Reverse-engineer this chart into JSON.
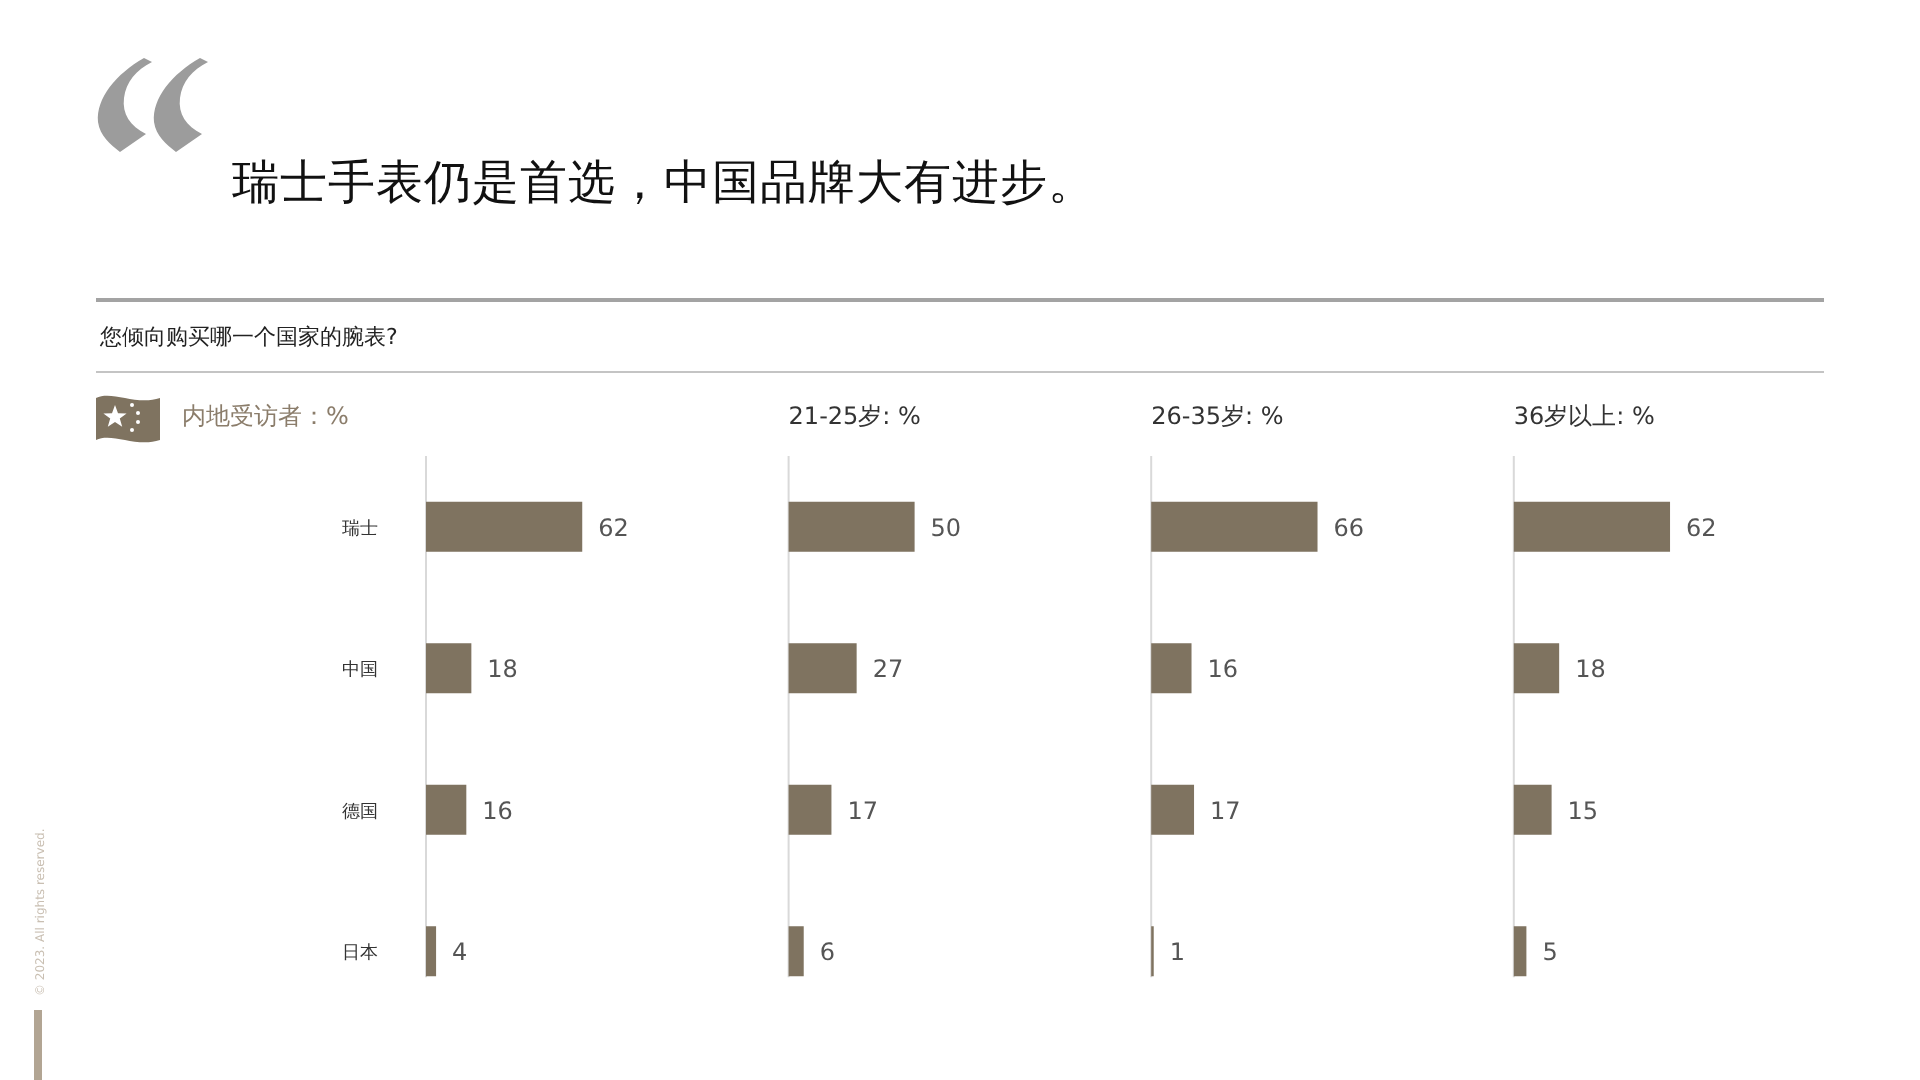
{
  "chart_data": [
    {
      "type": "other",
      "title": "瑞士手表仍是首选，中国品牌大有进步。",
      "subtitle": "您倾向购买哪一个国家的腕表?",
      "annotations": [
        "© 2023. All rights reserved."
      ]
    },
    {
      "type": "bar",
      "orientation": "horizontal",
      "title": "内地受访者：%",
      "categories": [
        "瑞士",
        "中国",
        "德国",
        "日本"
      ],
      "values": [
        62,
        18,
        16,
        4
      ],
      "color": "#7f7360",
      "data_labels": true,
      "tick_labels": "y"
    },
    {
      "type": "bar",
      "orientation": "horizontal",
      "title": "21-25岁: %",
      "categories": [
        null,
        null,
        null,
        null
      ],
      "values": [
        50,
        27,
        17,
        6
      ],
      "color": "#7f7360",
      "data_labels": true
    },
    {
      "type": "bar",
      "orientation": "horizontal",
      "title": "26-35岁: %",
      "categories": [
        null,
        null,
        null,
        null
      ],
      "values": [
        66,
        16,
        17,
        1
      ],
      "color": "#7f7360",
      "data_labels": true
    },
    {
      "type": "bar",
      "orientation": "horizontal",
      "title": "36岁以上: %",
      "categories": [
        null,
        null,
        null,
        null
      ],
      "values": [
        62,
        18,
        15,
        5
      ],
      "color": "#7f7360",
      "data_labels": true
    }
  ]
}
